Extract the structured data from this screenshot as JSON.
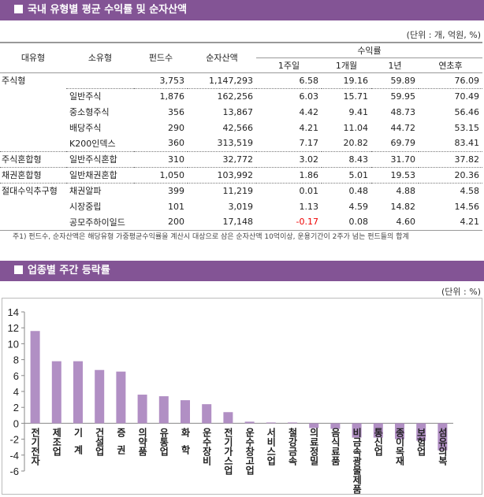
{
  "section1": {
    "title": "국내 유형별 평균 수익률 및 순자산액",
    "unit": "(단위 : 개, 억원, %)"
  },
  "table": {
    "headers": {
      "major": "대유형",
      "minor": "소유형",
      "funds": "펀드수",
      "assets": "순자산액",
      "returns": "수익률",
      "w1": "1주일",
      "m1": "1개월",
      "y1": "1년",
      "ytd": "연초후"
    },
    "rows": [
      {
        "major": "주식형",
        "minor": "",
        "funds": "3,753",
        "assets": "1,147,293",
        "w1": "6.58",
        "m1": "19.16",
        "y1": "59.89",
        "ytd": "76.09"
      },
      {
        "major": "",
        "minor": "일반주식",
        "funds": "1,876",
        "assets": "162,256",
        "w1": "6.03",
        "m1": "15.71",
        "y1": "59.95",
        "ytd": "70.49"
      },
      {
        "major": "",
        "minor": "중소형주식",
        "funds": "356",
        "assets": "13,867",
        "w1": "4.42",
        "m1": "9.41",
        "y1": "48.73",
        "ytd": "56.46"
      },
      {
        "major": "",
        "minor": "배당주식",
        "funds": "290",
        "assets": "42,566",
        "w1": "4.21",
        "m1": "11.04",
        "y1": "44.72",
        "ytd": "53.15"
      },
      {
        "major": "",
        "minor": "K200인덱스",
        "funds": "360",
        "assets": "313,519",
        "w1": "7.17",
        "m1": "20.82",
        "y1": "69.79",
        "ytd": "83.41"
      },
      {
        "major": "주식혼합형",
        "minor": "일반주식혼합",
        "funds": "310",
        "assets": "32,772",
        "w1": "3.02",
        "m1": "8.43",
        "y1": "31.70",
        "ytd": "37.82"
      },
      {
        "major": "채권혼합형",
        "minor": "일반채권혼합",
        "funds": "1,050",
        "assets": "103,992",
        "w1": "1.86",
        "m1": "5.01",
        "y1": "19.53",
        "ytd": "20.36"
      },
      {
        "major": "절대수익추구형",
        "minor": "채권알파",
        "funds": "399",
        "assets": "11,219",
        "w1": "0.01",
        "m1": "0.48",
        "y1": "4.88",
        "ytd": "4.58"
      },
      {
        "major": "",
        "minor": "시장중립",
        "funds": "101",
        "assets": "3,019",
        "w1": "1.13",
        "m1": "4.59",
        "y1": "14.82",
        "ytd": "14.56"
      },
      {
        "major": "",
        "minor": "공모주하이일드",
        "funds": "200",
        "assets": "17,148",
        "w1": "-0.17",
        "m1": "0.08",
        "y1": "4.60",
        "ytd": "4.21"
      }
    ],
    "note": "주1) 펀드수, 순자산액은 해당유형 가중평균수익률을 계산시 대상으로 삼은 순자산액 10억이상, 운용기간이 2주가 넘는 펀드들의 합계"
  },
  "section2": {
    "title": "업종별 주간 등락률",
    "unit": "(단위 : %)"
  },
  "colors": {
    "header": "#835495",
    "bar": "#b18fc4",
    "negative_text": "#e00000"
  },
  "chart_data": {
    "type": "bar",
    "categories": [
      "전기전자",
      "제조업",
      "기계",
      "건설업",
      "증권",
      "의약품",
      "유통업",
      "화학",
      "운수장비",
      "전기가스업",
      "운수창고업",
      "서비스업",
      "철강금속",
      "의료정밀",
      "음식료품",
      "비금속광물제품",
      "통신업",
      "종이목재",
      "보험업",
      "섬유의복"
    ],
    "values": [
      11.6,
      7.8,
      7.8,
      6.7,
      6.5,
      3.6,
      3.4,
      2.9,
      2.4,
      1.4,
      0.2,
      0.1,
      0.1,
      -0.6,
      -0.7,
      -1.8,
      -1.8,
      -2.0,
      -2.2,
      -3.4
    ],
    "ylim": [
      -6,
      14
    ],
    "yticks": [
      "14",
      "12",
      "10",
      "8",
      "6",
      "4",
      "2",
      "0",
      "-2",
      "-4",
      "-6"
    ],
    "grid": false
  }
}
